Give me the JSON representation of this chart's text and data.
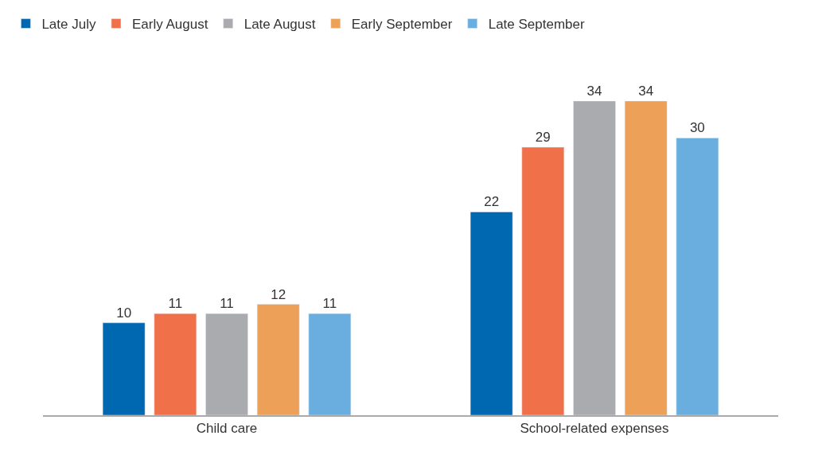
{
  "chart_data": {
    "type": "bar",
    "categories": [
      "Child care",
      "School-related expenses"
    ],
    "series": [
      {
        "name": "Late July",
        "color": "#0068b0",
        "values": [
          10,
          22
        ]
      },
      {
        "name": "Early August",
        "color": "#f0704a",
        "values": [
          11,
          29
        ]
      },
      {
        "name": "Late August",
        "color": "#a9abae",
        "values": [
          11,
          34
        ]
      },
      {
        "name": "Early September",
        "color": "#eda058",
        "values": [
          12,
          34
        ]
      },
      {
        "name": "Late September",
        "color": "#6aaee0",
        "values": [
          11,
          30
        ]
      }
    ],
    "data_labels": true,
    "legend": "top"
  }
}
